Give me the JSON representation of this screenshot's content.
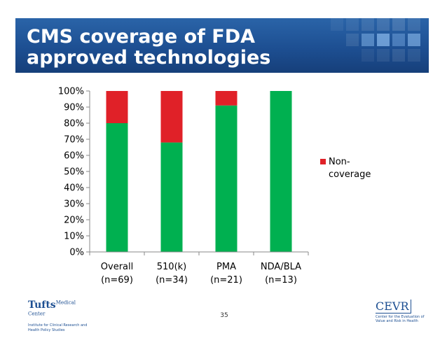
{
  "slide": {
    "title": "CMS coverage of FDA approved technologies",
    "page_number": "35"
  },
  "logos": {
    "left": {
      "brand": "Tufts",
      "brand_small": "Medical Center",
      "sub": "Institute for Clinical Research and Health Policy Studies"
    },
    "right": {
      "brand": "CEVR",
      "sub": "Center for the Evaluation of Value and Risk in Health"
    }
  },
  "colors": {
    "banner": "#1d4f92",
    "coverage": "#00b050",
    "non_coverage": "#e02128"
  },
  "chart_data": {
    "type": "bar",
    "stacked": true,
    "title": "",
    "xlabel": "",
    "ylabel": "",
    "ylim": [
      0,
      100
    ],
    "yticks": [
      "0%",
      "10%",
      "20%",
      "30%",
      "40%",
      "50%",
      "60%",
      "70%",
      "80%",
      "90%",
      "100%"
    ],
    "categories": [
      [
        "Overall",
        "(n=69)"
      ],
      [
        "510(k)",
        "(n=34)"
      ],
      [
        "PMA",
        "(n=21)"
      ],
      [
        "NDA/BLA",
        "(n=13)"
      ]
    ],
    "series": [
      {
        "key": "coverage",
        "values": [
          80,
          68,
          91,
          100
        ],
        "color": "#00b050"
      },
      {
        "name": "Non-coverage",
        "legend_lines": [
          "Non-",
          "coverage"
        ],
        "values": [
          20,
          32,
          9,
          0
        ],
        "color": "#e02128"
      }
    ],
    "legend": {
      "position": "right",
      "entries": [
        "Non-coverage"
      ]
    },
    "grid": false
  }
}
